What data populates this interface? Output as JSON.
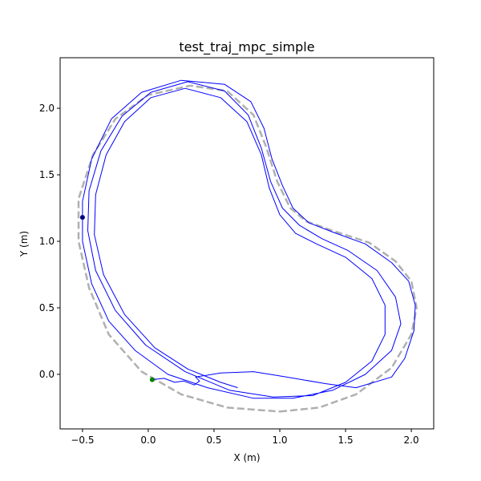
{
  "chart_data": {
    "type": "line",
    "title": "test_traj_mpc_simple",
    "xlabel": "X (m)",
    "ylabel": "Y (m)",
    "xlim": [
      -0.67,
      2.17
    ],
    "ylim": [
      -0.41,
      2.38
    ],
    "xticks": [
      -0.5,
      0.0,
      0.5,
      1.0,
      1.5,
      2.0
    ],
    "xtick_labels": [
      "−0.5",
      "0.0",
      "0.5",
      "1.0",
      "1.5",
      "2.0"
    ],
    "yticks": [
      0.0,
      0.5,
      1.0,
      1.5,
      2.0
    ],
    "ytick_labels": [
      "0.0",
      "0.5",
      "1.0",
      "1.5",
      "2.0"
    ],
    "grid": false,
    "legend": false,
    "series": [
      {
        "style": "dashed",
        "color": "#b0b0b0",
        "points": [
          [
            1.0,
            -0.28
          ],
          [
            1.3,
            -0.25
          ],
          [
            1.58,
            -0.15
          ],
          [
            1.85,
            0.05
          ],
          [
            2.0,
            0.3
          ],
          [
            2.04,
            0.5
          ],
          [
            2.0,
            0.7
          ],
          [
            1.88,
            0.85
          ],
          [
            1.68,
            0.99
          ],
          [
            1.4,
            1.08
          ],
          [
            1.2,
            1.15
          ],
          [
            1.08,
            1.25
          ],
          [
            0.98,
            1.45
          ],
          [
            0.9,
            1.7
          ],
          [
            0.8,
            1.95
          ],
          [
            0.6,
            2.13
          ],
          [
            0.32,
            2.17
          ],
          [
            0.0,
            2.1
          ],
          [
            -0.25,
            1.92
          ],
          [
            -0.42,
            1.65
          ],
          [
            -0.53,
            1.32
          ],
          [
            -0.53,
            1.0
          ],
          [
            -0.45,
            0.65
          ],
          [
            -0.3,
            0.3
          ],
          [
            -0.05,
            0.02
          ],
          [
            0.25,
            -0.15
          ],
          [
            0.6,
            -0.25
          ],
          [
            1.0,
            -0.28
          ]
        ]
      },
      {
        "style": "solid",
        "color": "#0000ff",
        "points": [
          [
            0.03,
            -0.04
          ],
          [
            0.12,
            -0.03
          ],
          [
            0.2,
            -0.06
          ],
          [
            0.27,
            -0.05
          ],
          [
            0.35,
            -0.08
          ],
          [
            0.39,
            -0.05
          ],
          [
            0.36,
            -0.02
          ],
          [
            0.55,
            0.01
          ],
          [
            0.8,
            0.02
          ],
          [
            1.05,
            -0.02
          ],
          [
            1.35,
            -0.07
          ],
          [
            1.58,
            -0.1
          ],
          [
            1.85,
            -0.02
          ],
          [
            1.95,
            0.12
          ],
          [
            2.02,
            0.33
          ],
          [
            2.03,
            0.52
          ],
          [
            1.98,
            0.7
          ],
          [
            1.85,
            0.84
          ],
          [
            1.65,
            0.98
          ],
          [
            1.4,
            1.07
          ],
          [
            1.22,
            1.14
          ],
          [
            1.1,
            1.25
          ],
          [
            1.02,
            1.42
          ],
          [
            0.94,
            1.62
          ],
          [
            0.88,
            1.85
          ],
          [
            0.78,
            2.05
          ],
          [
            0.58,
            2.18
          ],
          [
            0.25,
            2.21
          ],
          [
            -0.05,
            2.12
          ],
          [
            -0.28,
            1.92
          ],
          [
            -0.43,
            1.62
          ],
          [
            -0.5,
            1.3
          ],
          [
            -0.5,
            1.0
          ],
          [
            -0.43,
            0.68
          ],
          [
            -0.3,
            0.4
          ],
          [
            -0.1,
            0.18
          ],
          [
            0.15,
            0.0
          ],
          [
            0.45,
            -0.1
          ],
          [
            0.8,
            -0.18
          ],
          [
            1.1,
            -0.18
          ],
          [
            1.4,
            -0.12
          ],
          [
            1.65,
            0.0
          ],
          [
            1.85,
            0.18
          ],
          [
            1.92,
            0.38
          ],
          [
            1.88,
            0.58
          ],
          [
            1.74,
            0.78
          ],
          [
            1.52,
            0.93
          ],
          [
            1.32,
            1.02
          ],
          [
            1.15,
            1.12
          ],
          [
            1.02,
            1.25
          ],
          [
            0.93,
            1.45
          ],
          [
            0.86,
            1.7
          ],
          [
            0.76,
            1.95
          ],
          [
            0.58,
            2.13
          ],
          [
            0.3,
            2.2
          ],
          [
            0.02,
            2.12
          ],
          [
            -0.2,
            1.94
          ],
          [
            -0.36,
            1.68
          ],
          [
            -0.45,
            1.38
          ],
          [
            -0.46,
            1.08
          ],
          [
            -0.4,
            0.78
          ],
          [
            -0.25,
            0.48
          ],
          [
            -0.02,
            0.22
          ],
          [
            0.28,
            0.02
          ],
          [
            0.62,
            -0.12
          ],
          [
            0.95,
            -0.17
          ],
          [
            1.25,
            -0.16
          ],
          [
            1.5,
            -0.06
          ],
          [
            1.7,
            0.1
          ],
          [
            1.8,
            0.3
          ],
          [
            1.8,
            0.52
          ],
          [
            1.7,
            0.72
          ],
          [
            1.5,
            0.88
          ],
          [
            1.28,
            0.98
          ],
          [
            1.12,
            1.06
          ],
          [
            1.0,
            1.2
          ],
          [
            0.92,
            1.4
          ],
          [
            0.86,
            1.65
          ],
          [
            0.75,
            1.9
          ],
          [
            0.55,
            2.08
          ],
          [
            0.28,
            2.15
          ],
          [
            0.02,
            2.08
          ],
          [
            -0.18,
            1.9
          ],
          [
            -0.32,
            1.65
          ],
          [
            -0.4,
            1.35
          ],
          [
            -0.41,
            1.05
          ],
          [
            -0.34,
            0.75
          ],
          [
            -0.18,
            0.45
          ],
          [
            0.05,
            0.2
          ],
          [
            0.3,
            0.04
          ],
          [
            0.55,
            -0.06
          ],
          [
            0.68,
            -0.1
          ]
        ]
      }
    ],
    "markers": [
      {
        "x": 0.03,
        "y": -0.04,
        "color": "#008000"
      },
      {
        "x": -0.5,
        "y": 1.18,
        "color": "#000080"
      }
    ]
  }
}
